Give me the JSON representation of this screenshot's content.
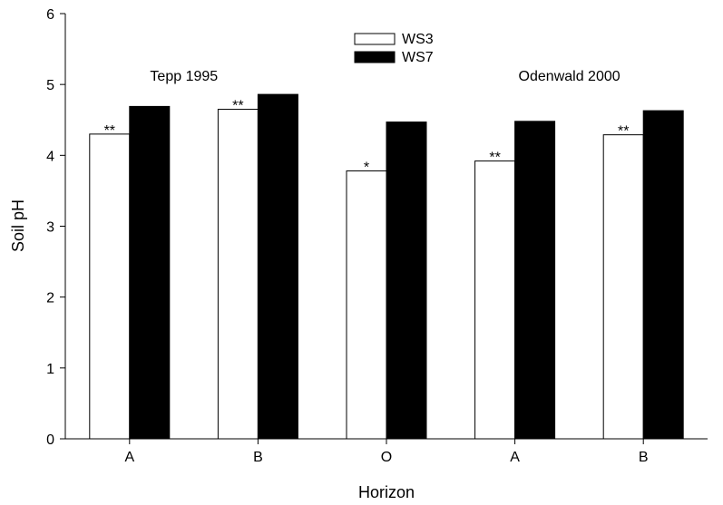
{
  "chart_data": {
    "type": "bar",
    "title": "",
    "xlabel": "Horizon",
    "ylabel": "Soil pH",
    "ylim": [
      0,
      6
    ],
    "yticks": [
      0,
      1,
      2,
      3,
      4,
      5,
      6
    ],
    "categories": [
      "A",
      "B",
      "O",
      "A",
      "B"
    ],
    "series": [
      {
        "name": "WS3",
        "values": [
          4.3,
          4.65,
          3.78,
          3.92,
          4.29
        ],
        "color": "#ffffff"
      },
      {
        "name": "WS7",
        "values": [
          4.69,
          4.86,
          4.47,
          4.48,
          4.63
        ],
        "color": "#000000"
      }
    ],
    "significance": [
      "**",
      "**",
      "*",
      "**",
      "**"
    ],
    "annotations": [
      {
        "text": "Tepp 1995",
        "category_index": 0
      },
      {
        "text": "Odenwald 2000",
        "category_index": 3
      }
    ],
    "legend_position": "top-center",
    "grid": false
  }
}
